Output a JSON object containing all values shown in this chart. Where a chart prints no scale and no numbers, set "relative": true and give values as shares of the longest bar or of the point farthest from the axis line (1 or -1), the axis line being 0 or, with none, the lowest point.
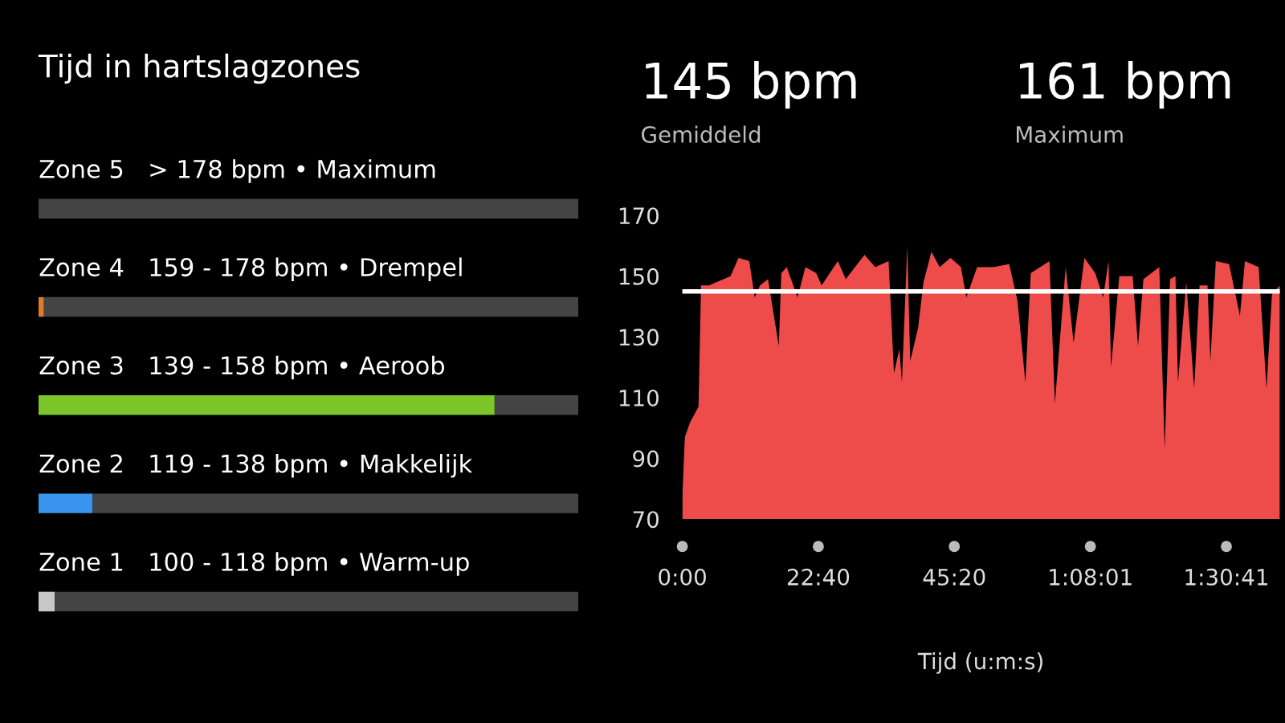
{
  "chart_data": [
    {
      "type": "bar",
      "title": "Tijd in hartslagzones",
      "orientation": "horizontal",
      "relative": true,
      "stacked": true,
      "categories": [
        "Zone 5   > 178 bpm • Maximum",
        "Zone 4   159 - 178 bpm • Drempel",
        "Zone 3   139 - 158 bpm • Aeroob",
        "Zone 2   119 - 138 bpm • Makkelijk",
        "Zone 1   100 - 118 bpm • Warm-up"
      ],
      "series": [
        {
          "colors": [
            "#444444",
            "#e07b28",
            "#7dc62a",
            "#3a95f0",
            "#c8c8c8"
          ],
          "values": [
            0,
            0.01,
            0.845,
            0.1,
            0.03
          ]
        },
        {
          "color": "#444444",
          "values": [
            1,
            0.99,
            0.155,
            0.9,
            0.97
          ]
        }
      ]
    },
    {
      "type": "area",
      "xlabel": "Tijd (u:m:s)",
      "color": "#ee4b4b",
      "annotations": [
        "145 bpm",
        "Gemiddeld",
        "161 bpm",
        "Maximum"
      ],
      "x": [
        0,
        0.42,
        1.32,
        2.7,
        3.12,
        4.44,
        8.04,
        9.36,
        11.16,
        12.06,
        12.96,
        14.28,
        16.08,
        16.5,
        17.4,
        19.2,
        20.52,
        22.32,
        23.22,
        25.92,
        27.24,
        30.36,
        32.16,
        34.38,
        35.28,
        36.18,
        36.6,
        37.5,
        37.98,
        39.3,
        40.2,
        41.52,
        42.9,
        44.7,
        46.44,
        47.34,
        49.14,
        51.84,
        54.48,
        55.86,
        57.18,
        58.08,
        61.2,
        62.1,
        63.9,
        65.22,
        67.02,
        68.82,
        70.14,
        71.04,
        71.46,
        72.84,
        75.06,
        75.96,
        76.86,
        79.5,
        80.4,
        81.3,
        82.2,
        82.62,
        84,
        85.32,
        86.22,
        87.54,
        88.02,
        88.92,
        91.14,
        92.94,
        93.78,
        96.06,
        97.38,
        98.28,
        99.6
      ],
      "values": [
        77,
        97,
        102,
        107,
        147,
        147,
        150,
        156,
        155,
        143,
        147,
        149,
        127,
        151,
        153,
        143,
        153,
        151,
        147,
        155,
        149,
        157,
        153,
        155,
        118,
        126,
        115,
        160,
        122,
        133,
        148,
        158,
        153,
        156,
        153,
        143,
        153,
        153,
        154,
        142,
        115,
        151,
        155,
        108,
        153,
        128,
        156,
        151,
        143,
        155,
        120,
        150,
        150,
        127,
        149,
        153,
        93,
        149,
        150,
        115,
        148,
        113,
        147,
        147,
        122,
        155,
        154,
        137,
        155,
        153,
        113,
        144,
        147
      ],
      "xlim": [
        0,
        99.6
      ],
      "ylim": [
        70,
        170
      ],
      "yticks": [
        70,
        90,
        110,
        130,
        150,
        170
      ],
      "xticks": [
        {
          "value": 0,
          "label": "0:00"
        },
        {
          "value": 22.667,
          "label": "22:40"
        },
        {
          "value": 45.333,
          "label": "45:20"
        },
        {
          "value": 68.017,
          "label": "1:08:01"
        },
        {
          "value": 90.683,
          "label": "1:30:41"
        }
      ],
      "ref_lines": [
        {
          "axis": "y",
          "value": 145,
          "color": "#ffffff"
        }
      ],
      "grid": false
    }
  ]
}
